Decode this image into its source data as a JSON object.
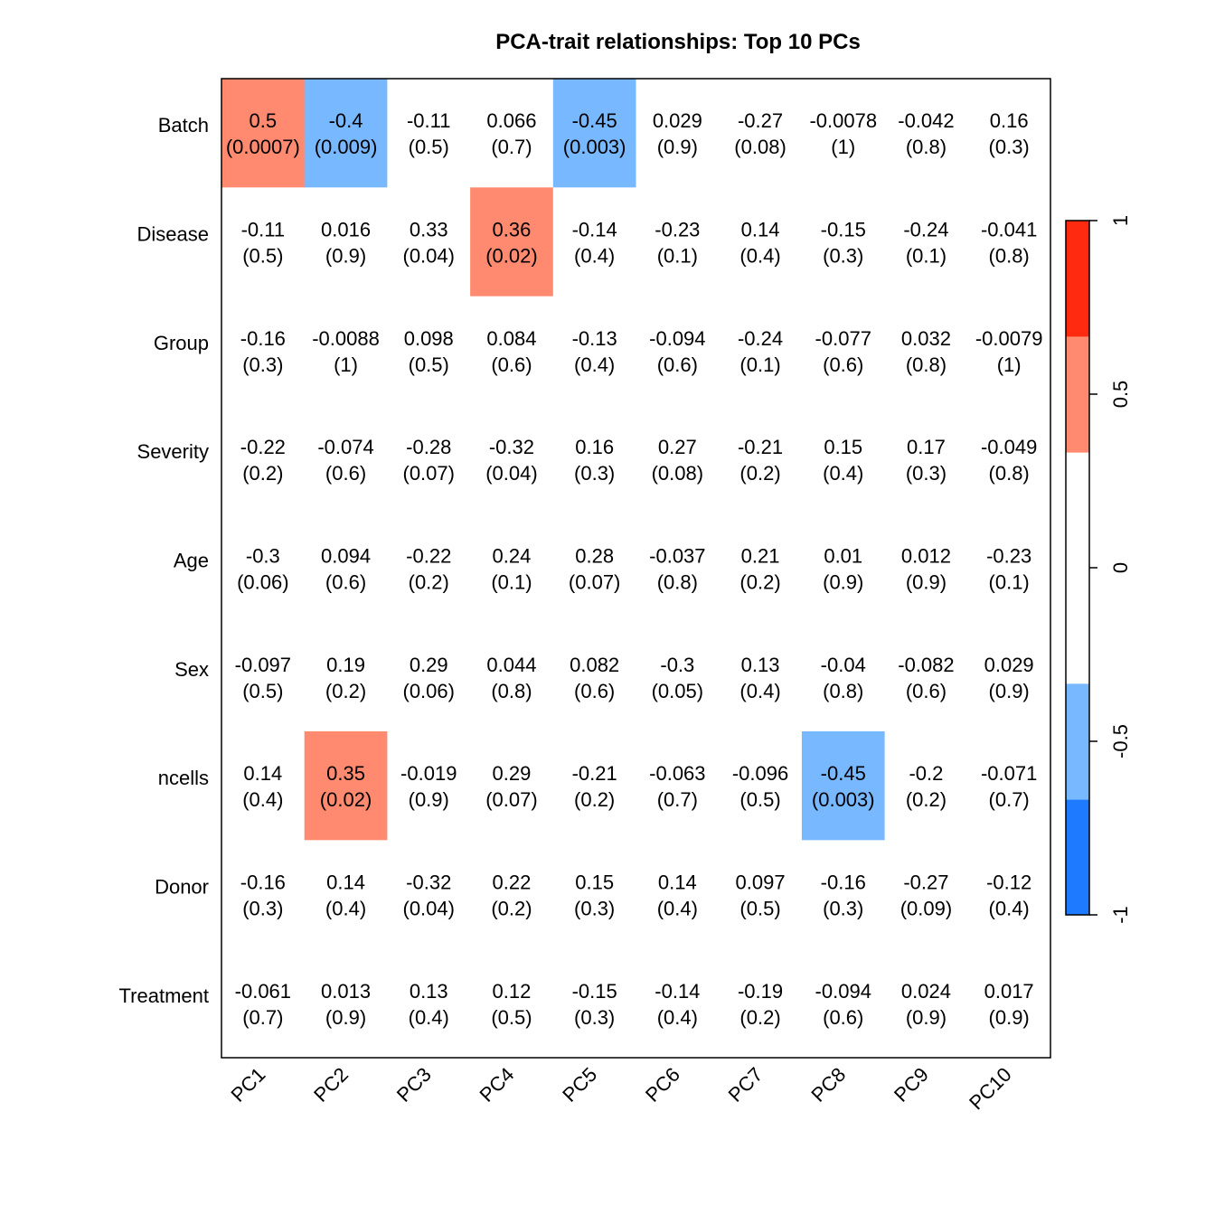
{
  "chart_data": {
    "type": "heatmap",
    "title": "PCA-trait relationships: Top 10 PCs",
    "x_categories": [
      "PC1",
      "PC2",
      "PC3",
      "PC4",
      "PC5",
      "PC6",
      "PC7",
      "PC8",
      "PC9",
      "PC10"
    ],
    "y_categories": [
      "Batch",
      "Disease",
      "Group",
      "Severity",
      "Age",
      "Sex",
      "ncells",
      "Donor",
      "Treatment"
    ],
    "cells": [
      {
        "r": "0.5",
        "p": "(0.0007)"
      },
      {
        "r": "-0.4",
        "p": "(0.009)"
      },
      {
        "r": "-0.11",
        "p": "(0.5)"
      },
      {
        "r": "0.066",
        "p": "(0.7)"
      },
      {
        "r": "-0.45",
        "p": "(0.003)"
      },
      {
        "r": "0.029",
        "p": "(0.9)"
      },
      {
        "r": "-0.27",
        "p": "(0.08)"
      },
      {
        "r": "-0.0078",
        "p": "(1)"
      },
      {
        "r": "-0.042",
        "p": "(0.8)"
      },
      {
        "r": "0.16",
        "p": "(0.3)"
      },
      {
        "r": "-0.11",
        "p": "(0.5)"
      },
      {
        "r": "0.016",
        "p": "(0.9)"
      },
      {
        "r": "0.33",
        "p": "(0.04)"
      },
      {
        "r": "0.36",
        "p": "(0.02)"
      },
      {
        "r": "-0.14",
        "p": "(0.4)"
      },
      {
        "r": "-0.23",
        "p": "(0.1)"
      },
      {
        "r": "0.14",
        "p": "(0.4)"
      },
      {
        "r": "-0.15",
        "p": "(0.3)"
      },
      {
        "r": "-0.24",
        "p": "(0.1)"
      },
      {
        "r": "-0.041",
        "p": "(0.8)"
      },
      {
        "r": "-0.16",
        "p": "(0.3)"
      },
      {
        "r": "-0.0088",
        "p": "(1)"
      },
      {
        "r": "0.098",
        "p": "(0.5)"
      },
      {
        "r": "0.084",
        "p": "(0.6)"
      },
      {
        "r": "-0.13",
        "p": "(0.4)"
      },
      {
        "r": "-0.094",
        "p": "(0.6)"
      },
      {
        "r": "-0.24",
        "p": "(0.1)"
      },
      {
        "r": "-0.077",
        "p": "(0.6)"
      },
      {
        "r": "0.032",
        "p": "(0.8)"
      },
      {
        "r": "-0.0079",
        "p": "(1)"
      },
      {
        "r": "-0.22",
        "p": "(0.2)"
      },
      {
        "r": "-0.074",
        "p": "(0.6)"
      },
      {
        "r": "-0.28",
        "p": "(0.07)"
      },
      {
        "r": "-0.32",
        "p": "(0.04)"
      },
      {
        "r": "0.16",
        "p": "(0.3)"
      },
      {
        "r": "0.27",
        "p": "(0.08)"
      },
      {
        "r": "-0.21",
        "p": "(0.2)"
      },
      {
        "r": "0.15",
        "p": "(0.4)"
      },
      {
        "r": "0.17",
        "p": "(0.3)"
      },
      {
        "r": "-0.049",
        "p": "(0.8)"
      },
      {
        "r": "-0.3",
        "p": "(0.06)"
      },
      {
        "r": "0.094",
        "p": "(0.6)"
      },
      {
        "r": "-0.22",
        "p": "(0.2)"
      },
      {
        "r": "0.24",
        "p": "(0.1)"
      },
      {
        "r": "0.28",
        "p": "(0.07)"
      },
      {
        "r": "-0.037",
        "p": "(0.8)"
      },
      {
        "r": "0.21",
        "p": "(0.2)"
      },
      {
        "r": "0.01",
        "p": "(0.9)"
      },
      {
        "r": "0.012",
        "p": "(0.9)"
      },
      {
        "r": "-0.23",
        "p": "(0.1)"
      },
      {
        "r": "-0.097",
        "p": "(0.5)"
      },
      {
        "r": "0.19",
        "p": "(0.2)"
      },
      {
        "r": "0.29",
        "p": "(0.06)"
      },
      {
        "r": "0.044",
        "p": "(0.8)"
      },
      {
        "r": "0.082",
        "p": "(0.6)"
      },
      {
        "r": "-0.3",
        "p": "(0.05)"
      },
      {
        "r": "0.13",
        "p": "(0.4)"
      },
      {
        "r": "-0.04",
        "p": "(0.8)"
      },
      {
        "r": "-0.082",
        "p": "(0.6)"
      },
      {
        "r": "0.029",
        "p": "(0.9)"
      },
      {
        "r": "0.14",
        "p": "(0.4)"
      },
      {
        "r": "0.35",
        "p": "(0.02)"
      },
      {
        "r": "-0.019",
        "p": "(0.9)"
      },
      {
        "r": "0.29",
        "p": "(0.07)"
      },
      {
        "r": "-0.21",
        "p": "(0.2)"
      },
      {
        "r": "-0.063",
        "p": "(0.7)"
      },
      {
        "r": "-0.096",
        "p": "(0.5)"
      },
      {
        "r": "-0.45",
        "p": "(0.003)"
      },
      {
        "r": "-0.2",
        "p": "(0.2)"
      },
      {
        "r": "-0.071",
        "p": "(0.7)"
      },
      {
        "r": "-0.16",
        "p": "(0.3)"
      },
      {
        "r": "0.14",
        "p": "(0.4)"
      },
      {
        "r": "-0.32",
        "p": "(0.04)"
      },
      {
        "r": "0.22",
        "p": "(0.2)"
      },
      {
        "r": "0.15",
        "p": "(0.3)"
      },
      {
        "r": "0.14",
        "p": "(0.4)"
      },
      {
        "r": "0.097",
        "p": "(0.5)"
      },
      {
        "r": "-0.16",
        "p": "(0.3)"
      },
      {
        "r": "-0.27",
        "p": "(0.09)"
      },
      {
        "r": "-0.12",
        "p": "(0.4)"
      },
      {
        "r": "-0.061",
        "p": "(0.7)"
      },
      {
        "r": "0.013",
        "p": "(0.9)"
      },
      {
        "r": "0.13",
        "p": "(0.4)"
      },
      {
        "r": "0.12",
        "p": "(0.5)"
      },
      {
        "r": "-0.15",
        "p": "(0.3)"
      },
      {
        "r": "-0.14",
        "p": "(0.4)"
      },
      {
        "r": "-0.19",
        "p": "(0.2)"
      },
      {
        "r": "-0.094",
        "p": "(0.6)"
      },
      {
        "r": "0.024",
        "p": "(0.9)"
      },
      {
        "r": "0.017",
        "p": "(0.9)"
      }
    ],
    "color_scale": {
      "range": [
        -1,
        1
      ],
      "breaks": [
        -1,
        -0.667,
        -0.333,
        0.333,
        0.667,
        1
      ],
      "colors": [
        "#1e7bff",
        "#78b8ff",
        "#ffffff",
        "#ff8a70",
        "#ff2a10"
      ],
      "tick_values": [
        1,
        0.5,
        0,
        -0.5,
        -1
      ],
      "tick_labels": [
        "1",
        "0.5",
        "0",
        "-0.5",
        "-1"
      ]
    }
  }
}
